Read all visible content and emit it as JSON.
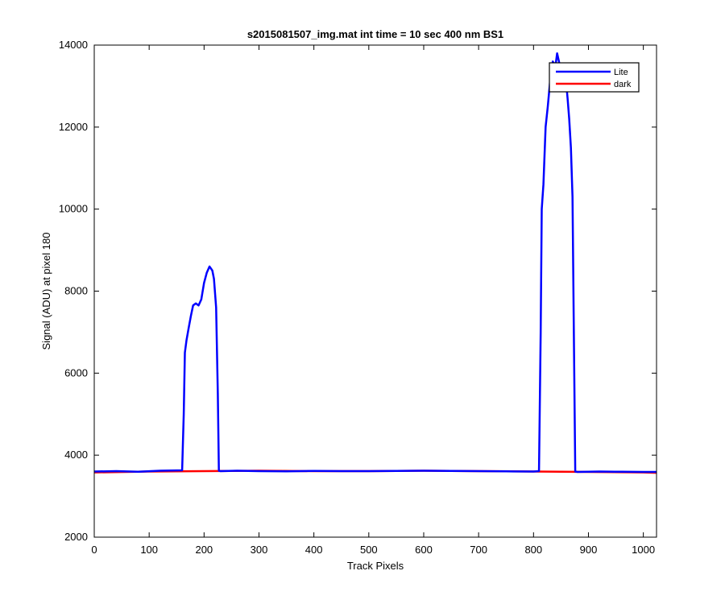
{
  "chart_data": {
    "type": "line",
    "title": "s2015081507_img.mat int time = 10 sec  400 nm BS1",
    "xlabel": "Track Pixels",
    "ylabel": "Signal (ADU) at pixel 180",
    "xlim": [
      0,
      1024
    ],
    "ylim": [
      2000,
      14000
    ],
    "xticks": [
      0,
      100,
      200,
      300,
      400,
      500,
      600,
      700,
      800,
      900,
      1000
    ],
    "yticks": [
      2000,
      4000,
      6000,
      8000,
      10000,
      12000,
      14000
    ],
    "grid": false,
    "legend_position": "top-right",
    "series": [
      {
        "name": "Lite",
        "color": "#0000ff",
        "x": [
          0,
          40,
          80,
          120,
          160,
          163,
          165,
          168,
          172,
          176,
          180,
          185,
          190,
          195,
          200,
          205,
          210,
          215,
          218,
          222,
          225,
          227,
          230,
          260,
          300,
          350,
          400,
          450,
          500,
          550,
          600,
          650,
          700,
          750,
          800,
          810,
          813,
          815,
          818,
          822,
          826,
          830,
          835,
          840,
          843,
          848,
          852,
          856,
          860,
          862,
          865,
          868,
          871,
          873,
          876,
          880,
          920,
          960,
          1000,
          1024
        ],
        "y": [
          3600,
          3610,
          3595,
          3620,
          3630,
          5000,
          6500,
          6800,
          7100,
          7400,
          7650,
          7700,
          7650,
          7800,
          8200,
          8450,
          8600,
          8500,
          8300,
          7600,
          5500,
          3620,
          3610,
          3620,
          3610,
          3605,
          3615,
          3610,
          3610,
          3615,
          3620,
          3615,
          3610,
          3605,
          3600,
          3610,
          7000,
          10000,
          10600,
          12000,
          12500,
          13100,
          13600,
          13500,
          13800,
          13500,
          13200,
          13300,
          13000,
          12700,
          12200,
          11500,
          10300,
          7500,
          3600,
          3590,
          3600,
          3595,
          3590,
          3590
        ]
      },
      {
        "name": "dark",
        "color": "#ff0000",
        "x": [
          0,
          100,
          200,
          300,
          400,
          500,
          600,
          700,
          800,
          900,
          1000,
          1024
        ],
        "y": [
          3580,
          3600,
          3610,
          3620,
          3610,
          3610,
          3620,
          3610,
          3600,
          3590,
          3580,
          3570
        ]
      }
    ]
  }
}
